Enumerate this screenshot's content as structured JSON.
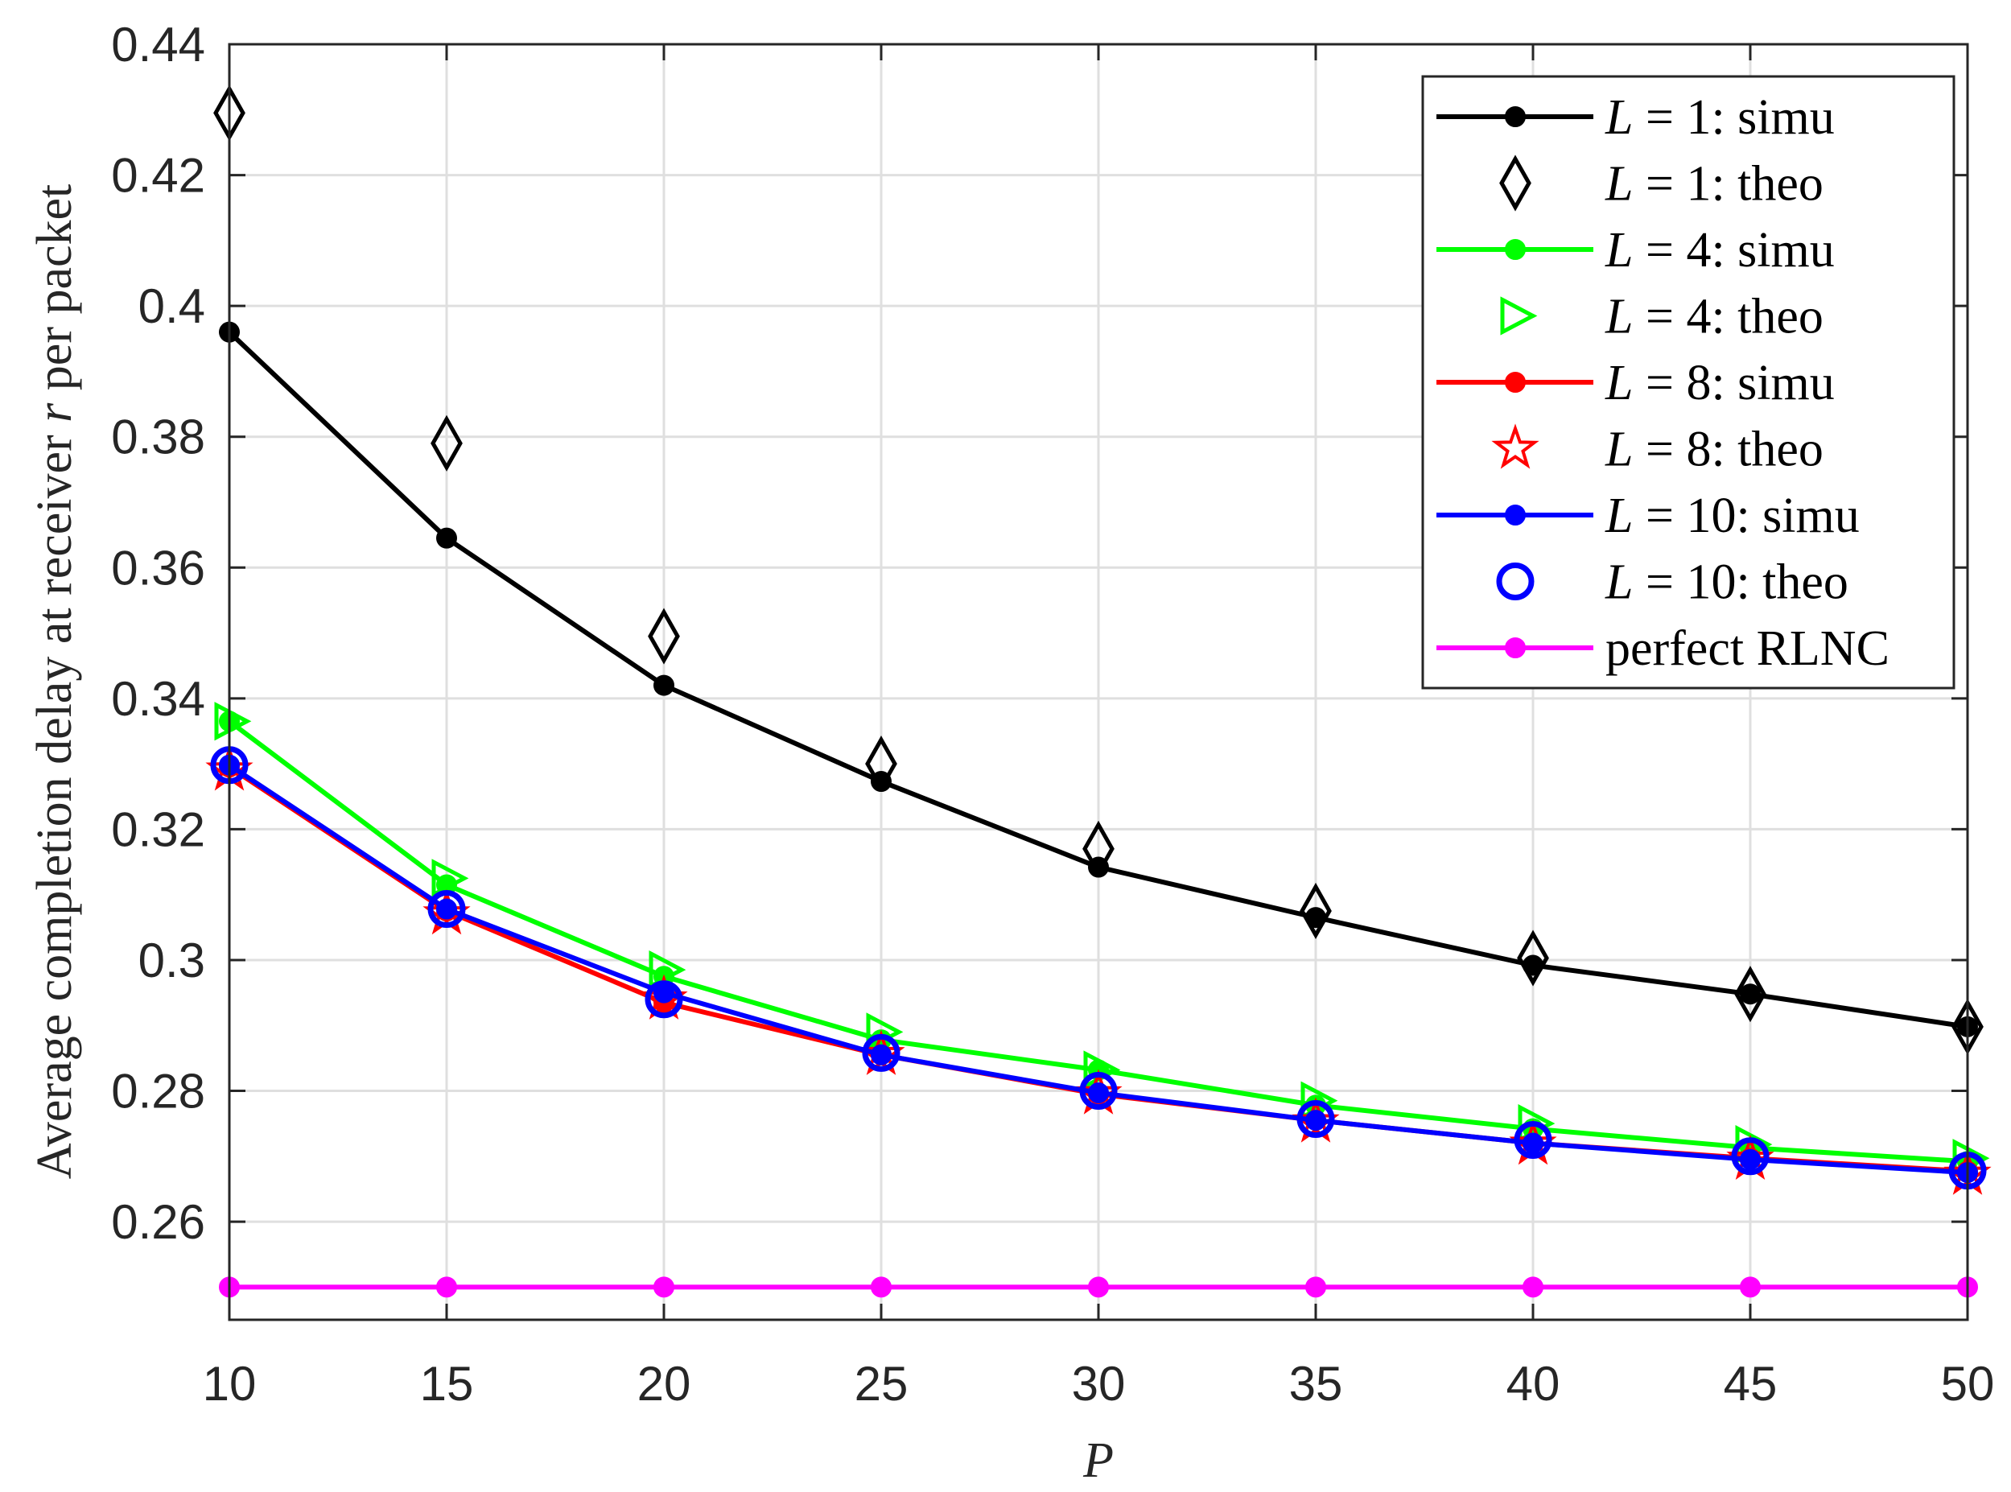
{
  "chart_data": {
    "type": "line",
    "xlabel": "P",
    "ylabel": "Average completion delay at receiver r per packet",
    "ylabel_parts": {
      "pre": "Average completion delay at receiver ",
      "var": "r",
      "post": " per packet"
    },
    "x": [
      10,
      15,
      20,
      25,
      30,
      35,
      40,
      45,
      50
    ],
    "xlim": [
      10,
      50
    ],
    "ylim": [
      0.245,
      0.44
    ],
    "xticks": [
      "10",
      "15",
      "20",
      "25",
      "30",
      "35",
      "40",
      "45",
      "50"
    ],
    "yticks": [
      "0.26",
      "0.28",
      "0.3",
      "0.32",
      "0.34",
      "0.36",
      "0.38",
      "0.4",
      "0.42",
      "0.44"
    ],
    "grid": true,
    "legend_position": "top-right",
    "series": [
      {
        "name": "L = 1: simu",
        "label_var": "L",
        "label_rest": " = 1: simu",
        "color": "#000000",
        "line": true,
        "marker": "dot",
        "values": [
          0.396,
          0.3645,
          0.342,
          0.3273,
          0.3142,
          0.3065,
          0.2992,
          0.2948,
          0.2898
        ]
      },
      {
        "name": "L = 1: theo",
        "label_var": "L",
        "label_rest": " = 1: theo",
        "color": "#000000",
        "line": false,
        "marker": "diamond",
        "values": [
          0.4295,
          0.379,
          0.3495,
          0.33,
          0.317,
          0.3075,
          0.3003,
          0.2948,
          0.2898
        ]
      },
      {
        "name": "L = 4: simu",
        "label_var": "L",
        "label_rest": " = 4: simu",
        "color": "#00ff00",
        "line": true,
        "marker": "dot",
        "values": [
          0.3365,
          0.3115,
          0.2975,
          0.2878,
          0.2832,
          0.2778,
          0.2742,
          0.2713,
          0.2692
        ]
      },
      {
        "name": "L = 4: theo",
        "label_var": "L",
        "label_rest": " = 4: theo",
        "color": "#00ff00",
        "line": false,
        "marker": "triangle-right",
        "values": [
          0.3365,
          0.3125,
          0.2985,
          0.289,
          0.2832,
          0.2785,
          0.275,
          0.2718,
          0.2697
        ]
      },
      {
        "name": "L = 8: simu",
        "label_var": "L",
        "label_rest": " = 8: simu",
        "color": "#ff0000",
        "line": true,
        "marker": "dot",
        "values": [
          0.3295,
          0.3075,
          0.2935,
          0.2855,
          0.2795,
          0.2755,
          0.272,
          0.2697,
          0.2677
        ]
      },
      {
        "name": "L = 8: theo",
        "label_var": "L",
        "label_rest": " = 8: theo",
        "color": "#ff0000",
        "line": false,
        "marker": "star",
        "values": [
          0.329,
          0.307,
          0.294,
          0.2855,
          0.2795,
          0.2752,
          0.2718,
          0.2695,
          0.2672
        ]
      },
      {
        "name": "L = 10: simu",
        "label_var": "L",
        "label_rest": " = 10: simu",
        "color": "#0000ff",
        "line": true,
        "marker": "dot",
        "values": [
          0.3298,
          0.3078,
          0.295,
          0.2855,
          0.2797,
          0.2755,
          0.272,
          0.2695,
          0.2675
        ]
      },
      {
        "name": "L = 10: theo",
        "label_var": "L",
        "label_rest": " = 10: theo",
        "color": "#0000ff",
        "line": false,
        "marker": "circle",
        "values": [
          0.3298,
          0.3078,
          0.294,
          0.2858,
          0.28,
          0.2757,
          0.2725,
          0.27,
          0.2678
        ]
      },
      {
        "name": "perfect RLNC",
        "label_var": "",
        "label_rest": "perfect RLNC",
        "color": "#ff00ff",
        "line": true,
        "marker": "dot",
        "values": [
          0.25,
          0.25,
          0.25,
          0.25,
          0.25,
          0.25,
          0.25,
          0.25,
          0.25
        ]
      }
    ]
  }
}
